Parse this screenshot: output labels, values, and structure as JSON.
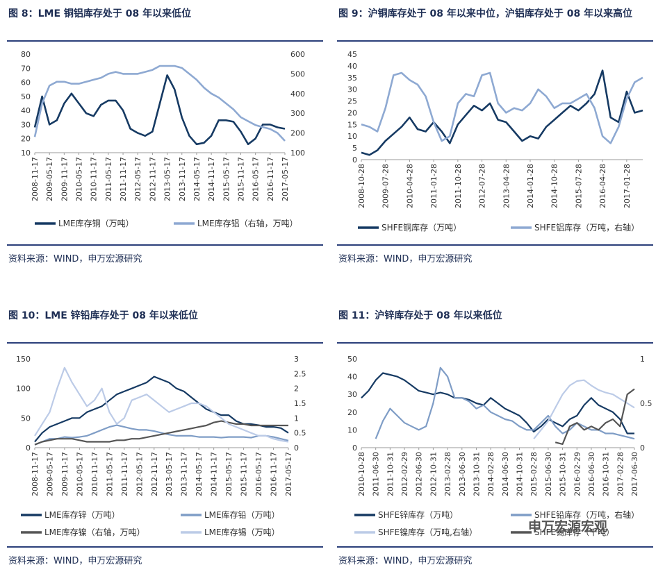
{
  "chart_data": [
    {
      "type": "line",
      "title": "图 8：LME 铜铝库存处于 08 年以来低位",
      "source": "资料来源：WIND，申万宏源研究",
      "categories": [
        "2008-11-17",
        null,
        "2009-05-17",
        null,
        "2009-11-17",
        null,
        "2010-05-17",
        null,
        "2010-11-17",
        null,
        "2011-05-17",
        null,
        "2011-11-17",
        null,
        "2012-05-17",
        null,
        "2012-11-17",
        null,
        "2013-05-17",
        null,
        "2013-11-17",
        null,
        "2014-05-17",
        null,
        "2014-11-17",
        null,
        "2015-05-17",
        null,
        "2015-11-17",
        null,
        "2016-05-17",
        null,
        "2016-11-17",
        null,
        "2017-05-17"
      ],
      "ylim": [
        10,
        80
      ],
      "yticks": [
        10,
        20,
        30,
        40,
        50,
        60,
        70,
        80
      ],
      "y2lim": [
        100,
        600
      ],
      "y2ticks": [
        100,
        200,
        300,
        400,
        500,
        600
      ],
      "series": [
        {
          "name": "LME库存铜（万吨）",
          "color": "#163a63",
          "values": [
            28,
            50,
            30,
            33,
            45,
            52,
            45,
            38,
            36,
            44,
            47,
            47,
            40,
            27,
            24,
            22,
            25,
            45,
            65,
            55,
            35,
            22,
            16,
            17,
            22,
            33,
            33,
            32,
            25,
            16,
            20,
            30,
            30,
            28,
            27
          ]
        },
        {
          "name": "LME库存铝（右轴，万吨）",
          "color": "#8ea9d2",
          "axis": "y2",
          "values": [
            180,
            350,
            440,
            460,
            460,
            450,
            450,
            460,
            470,
            480,
            500,
            510,
            500,
            500,
            500,
            510,
            520,
            540,
            540,
            540,
            530,
            500,
            470,
            430,
            400,
            380,
            350,
            320,
            280,
            260,
            240,
            230,
            220,
            200,
            160
          ]
        }
      ]
    },
    {
      "type": "line",
      "title": "图 9：沪铜库存处于 08 年以来中位，沪铝库存处于 08 年以来高位",
      "source": "资料来源：WIND，申万宏源研究",
      "categories": [
        "2008-10-28",
        null,
        null,
        "2009-07-28",
        null,
        null,
        "2010-04-28",
        null,
        null,
        "2011-01-28",
        null,
        null,
        "2011-10-28",
        null,
        null,
        "2012-07-28",
        null,
        null,
        "2013-04-28",
        null,
        null,
        "2014-01-28",
        null,
        null,
        "2014-10-28",
        null,
        null,
        "2015-07-28",
        null,
        null,
        "2016-04-28",
        null,
        null,
        "2017-01-28",
        null,
        null
      ],
      "ylim": [
        0,
        45
      ],
      "yticks": [
        0,
        5,
        10,
        15,
        20,
        25,
        30,
        35,
        40,
        45
      ],
      "series": [
        {
          "name": "SHFE铜库存（万吨）",
          "color": "#163a63",
          "values": [
            3,
            2,
            4,
            8,
            11,
            14,
            18,
            13,
            12,
            16,
            12,
            7,
            15,
            19,
            23,
            21,
            24,
            17,
            16,
            12,
            8,
            10,
            9,
            14,
            17,
            20,
            23,
            21,
            24,
            28,
            38,
            18,
            16,
            29,
            20,
            21
          ]
        },
        {
          "name": "SHFE铝库存（万吨，右轴）",
          "color": "#8ea9d2",
          "values": [
            15,
            14,
            12,
            22,
            36,
            37,
            34,
            32,
            27,
            16,
            8,
            10,
            24,
            28,
            27,
            36,
            37,
            24,
            20,
            22,
            21,
            24,
            30,
            27,
            22,
            24,
            24,
            26,
            28,
            22,
            10,
            7,
            14,
            26,
            33,
            35
          ]
        }
      ]
    },
    {
      "type": "line",
      "title": "图 10：LME 锌铅库存处于 08 年以来低位",
      "source": "资料来源：WIND，申万宏源研究",
      "categories": [
        "2008-11-17",
        null,
        "2009-05-17",
        null,
        "2009-11-17",
        null,
        "2010-05-17",
        null,
        "2010-11-17",
        null,
        "2011-05-17",
        null,
        "2011-11-17",
        null,
        "2012-05-17",
        null,
        "2012-11-17",
        null,
        "2013-05-17",
        null,
        "2013-11-17",
        null,
        "2014-05-17",
        null,
        "2014-11-17",
        null,
        "2015-05-17",
        null,
        "2015-11-17",
        null,
        "2016-05-17",
        null,
        "2016-11-17",
        null,
        "2017-05-17"
      ],
      "ylim": [
        0,
        150
      ],
      "yticks": [
        0,
        50,
        100,
        150
      ],
      "y2lim": [
        0,
        3
      ],
      "y2ticks": [
        0,
        0.5,
        1,
        1.5,
        2,
        2.5,
        3
      ],
      "series": [
        {
          "name": "LME库存锌（万吨）",
          "color": "#163a63",
          "values": [
            10,
            25,
            35,
            40,
            45,
            50,
            50,
            60,
            65,
            70,
            80,
            90,
            95,
            100,
            105,
            110,
            120,
            115,
            110,
            100,
            95,
            85,
            75,
            65,
            60,
            55,
            55,
            45,
            40,
            40,
            38,
            35,
            35,
            33,
            25
          ]
        },
        {
          "name": "LME库存铅（万吨）",
          "color": "#7f9dc6",
          "values": [
            5,
            10,
            15,
            15,
            18,
            17,
            18,
            20,
            25,
            30,
            35,
            38,
            35,
            32,
            30,
            30,
            28,
            25,
            22,
            20,
            20,
            20,
            18,
            18,
            18,
            17,
            18,
            18,
            18,
            17,
            20,
            20,
            18,
            15,
            12
          ]
        },
        {
          "name": "LME库存镍（右轴，万吨）",
          "color": "#555555",
          "axis": "y2",
          "values": [
            0.1,
            0.2,
            0.25,
            0.3,
            0.3,
            0.3,
            0.25,
            0.2,
            0.2,
            0.2,
            0.2,
            0.25,
            0.25,
            0.3,
            0.3,
            0.35,
            0.4,
            0.45,
            0.5,
            0.55,
            0.6,
            0.65,
            0.7,
            0.75,
            0.85,
            0.9,
            0.85,
            0.8,
            0.8,
            0.75,
            0.75,
            0.75,
            0.75,
            0.75,
            0.75
          ]
        },
        {
          "name": "LME库存锡（万吨）",
          "color": "#bccbe7",
          "values": [
            20,
            40,
            60,
            100,
            135,
            110,
            90,
            70,
            80,
            100,
            60,
            40,
            50,
            80,
            85,
            90,
            80,
            70,
            60,
            65,
            70,
            75,
            75,
            70,
            60,
            50,
            40,
            35,
            30,
            25,
            20,
            20,
            15,
            12,
            10
          ]
        }
      ]
    },
    {
      "type": "line",
      "title": "图 11：沪锌库存处于 08 年以来低位",
      "source": "资料来源：WIND，申万宏源研究",
      "categories": [
        "2010-10-28",
        null,
        "2011-06-30",
        null,
        "2011-10-31",
        null,
        "2012-02-29",
        null,
        "2012-06-30",
        null,
        "2012-10-31",
        null,
        "2013-02-28",
        null,
        "2013-06-30",
        null,
        "2013-10-31",
        null,
        "2014-02-28",
        null,
        "2014-06-30",
        null,
        "2014-10-31",
        null,
        "2015-02-28",
        null,
        "2015-06-30",
        null,
        "2015-10-31",
        null,
        "2016-02-29",
        null,
        "2016-06-30",
        null,
        "2016-10-31",
        null,
        "2017-02-28",
        null,
        "2017-06-30"
      ],
      "ylim": [
        0,
        50
      ],
      "yticks": [
        0,
        10,
        20,
        30,
        40,
        50
      ],
      "y2lim": [
        0,
        1
      ],
      "y2ticks": [
        0,
        0.5,
        1
      ],
      "series": [
        {
          "name": "SHFE锌库存（万吨）",
          "color": "#163a63",
          "values": [
            28,
            32,
            38,
            42,
            41,
            40,
            38,
            35,
            32,
            31,
            30,
            31,
            30,
            28,
            28,
            27,
            25,
            24,
            28,
            25,
            22,
            20,
            18,
            14,
            9,
            12,
            16,
            14,
            12,
            16,
            18,
            24,
            28,
            24,
            22,
            20,
            16,
            8,
            8
          ]
        },
        {
          "name": "SHFE铅库存（万吨，右轴）",
          "color": "#7f9dc6",
          "values": [
            null,
            null,
            5,
            15,
            22,
            18,
            14,
            12,
            10,
            12,
            25,
            45,
            40,
            28,
            28,
            26,
            22,
            24,
            20,
            18,
            16,
            15,
            12,
            10,
            10,
            14,
            18,
            12,
            8,
            10,
            14,
            12,
            10,
            10,
            8,
            8,
            7,
            6,
            5
          ]
        },
        {
          "name": "SHFE镍库存（万吨,右轴）",
          "color": "#bccbe7",
          "axis": "y2",
          "values": [
            null,
            null,
            null,
            null,
            null,
            null,
            null,
            null,
            null,
            null,
            null,
            null,
            null,
            null,
            null,
            null,
            null,
            null,
            null,
            null,
            null,
            null,
            null,
            null,
            0.1,
            0.2,
            0.3,
            0.45,
            0.6,
            0.7,
            0.75,
            0.76,
            0.7,
            0.65,
            0.62,
            0.6,
            0.55,
            0.5,
            0.45
          ]
        },
        {
          "name": "SHFE锡库存（千吨）",
          "color": "#555555",
          "values": [
            null,
            null,
            null,
            null,
            null,
            null,
            null,
            null,
            null,
            null,
            null,
            null,
            null,
            null,
            null,
            null,
            null,
            null,
            null,
            null,
            null,
            null,
            null,
            null,
            null,
            null,
            null,
            3,
            2,
            12,
            14,
            10,
            12,
            10,
            14,
            16,
            12,
            30,
            33
          ]
        }
      ]
    }
  ],
  "watermark": "申万宏源宏观"
}
